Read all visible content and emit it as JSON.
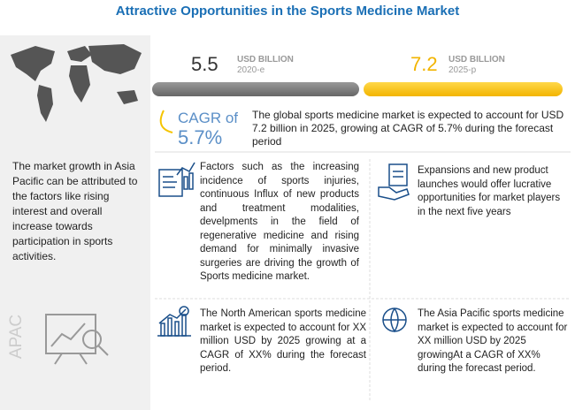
{
  "header": {
    "title": "Attractive Opportunities in the Sports Medicine Market"
  },
  "market": {
    "start": {
      "value": "5.5",
      "unit": "USD BILLION",
      "year": "2020-e"
    },
    "end": {
      "value": "7.2",
      "unit": "USD BILLION",
      "year": "2025-p"
    },
    "cagr_label": "CAGR of",
    "cagr_value": "5.7%",
    "summary": "The global sports medicine market is expected to account for USD 7.2 billion in 2025, growing at CAGR of 5.7% during the forecast period"
  },
  "sidebar": {
    "text": "The market growth in Asia Pacific can be attributed to the factors like rising interest and overall increase towards participation in sports activities.",
    "region": "APAC"
  },
  "insights": [
    "Factors such as the increasing incidence of sports injuries, continuous Influx of new products and treatment modalities, develpments in the field of regenerative medicine and rising demand for minimally invasive surgeries are driving the growth of Sports medicine market.",
    "Expansions and new product launches would offer lucrative opportunities for market players in the next five years",
    "The North American sports medicine market is expected to account for XX million USD by 2025 growing at a CAGR of XX% during the forecast period.",
    "The Asia Pacific sports medicine market is expected to account for XX million USD by 2025 growingAt a CAGR of XX% during the forecast period."
  ]
}
